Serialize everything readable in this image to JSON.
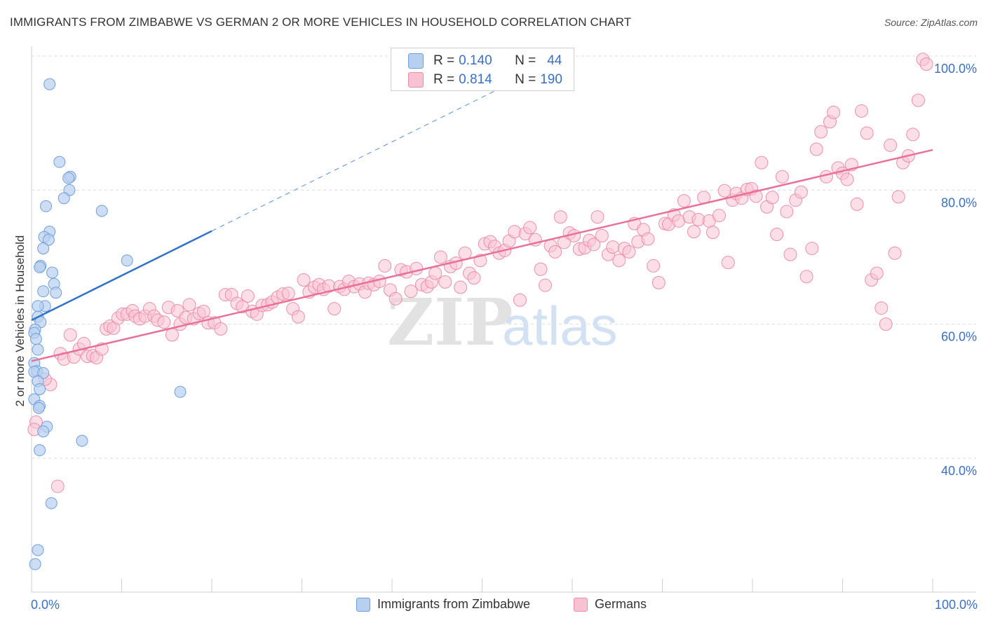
{
  "title": "IMMIGRANTS FROM ZIMBABWE VS GERMAN 2 OR MORE VEHICLES IN HOUSEHOLD CORRELATION CHART",
  "source": "Source: ZipAtlas.com",
  "watermark": {
    "zip": "ZIP",
    "atlas": "atlas"
  },
  "colors": {
    "blue_fill": "#b8d0f0",
    "blue_stroke": "#6f9fdc",
    "blue_line": "#2f72c9",
    "pink_fill": "#f9c2d3",
    "pink_stroke": "#ea8fab",
    "pink_line": "#e8709a",
    "axis_label": "#3a6fc4",
    "grid": "#dcdcdc"
  },
  "legend": {
    "rows": [
      {
        "r_key": "R =",
        "r_value": "0.140",
        "n_key": "N =",
        "n_value": "44"
      },
      {
        "r_key": "R =",
        "r_value": "0.814",
        "n_key": "N =",
        "n_value": "190"
      }
    ]
  },
  "bottom_legend": {
    "blue": "Immigrants from Zimbabwe",
    "pink": "Germans"
  },
  "chart_data": {
    "type": "scatter",
    "title": "IMMIGRANTS FROM ZIMBABWE VS GERMAN 2 OR MORE VEHICLES IN HOUSEHOLD CORRELATION CHART",
    "xlabel": "",
    "ylabel": "2 or more Vehicles in Household",
    "xlim": [
      0,
      100
    ],
    "ylim": [
      20,
      101
    ],
    "x_tick_labels": [
      "0.0%",
      "100.0%"
    ],
    "y_ticks": [
      100,
      80,
      60,
      40
    ],
    "y_tick_labels": [
      "100.0%",
      "80.0%",
      "60.0%",
      "40.0%"
    ],
    "grid": true,
    "legend_position": "top-center",
    "series": [
      {
        "name": "Immigrants from Zimbabwe",
        "color": "#6f9fdc",
        "r": 0.14,
        "n": 44,
        "trend": {
          "x": [
            0,
            20
          ],
          "y": [
            60.6,
            73.9
          ],
          "extended_to": [
            60,
            100
          ]
        },
        "points": [
          [
            2,
            95.8
          ],
          [
            3.1,
            84.2
          ],
          [
            4.3,
            82
          ],
          [
            4.1,
            81.8
          ],
          [
            4.2,
            80
          ],
          [
            3.6,
            78.8
          ],
          [
            1.6,
            77.6
          ],
          [
            7.8,
            76.9
          ],
          [
            2,
            73.8
          ],
          [
            1.4,
            73
          ],
          [
            1.9,
            72.6
          ],
          [
            1.3,
            71.3
          ],
          [
            10.6,
            69.5
          ],
          [
            1,
            68.7
          ],
          [
            0.9,
            68.5
          ],
          [
            2.3,
            67.7
          ],
          [
            2.5,
            66
          ],
          [
            1.3,
            64.9
          ],
          [
            2.7,
            64.7
          ],
          [
            1.5,
            62.7
          ],
          [
            0.7,
            62.7
          ],
          [
            0.7,
            61.1
          ],
          [
            1,
            60.3
          ],
          [
            0.4,
            59.2
          ],
          [
            0.3,
            58.7
          ],
          [
            0.5,
            57.8
          ],
          [
            0.7,
            56.2
          ],
          [
            0.3,
            54.2
          ],
          [
            0.6,
            53
          ],
          [
            0.3,
            52.9
          ],
          [
            1.3,
            52.7
          ],
          [
            0.7,
            51.5
          ],
          [
            0.9,
            50.3
          ],
          [
            16.5,
            49.9
          ],
          [
            0.3,
            48.8
          ],
          [
            0.9,
            47.8
          ],
          [
            0.8,
            47.5
          ],
          [
            1.7,
            44.7
          ],
          [
            1.3,
            44
          ],
          [
            5.6,
            42.6
          ],
          [
            0.9,
            41.2
          ],
          [
            2.2,
            33.3
          ],
          [
            0.7,
            26.3
          ],
          [
            0.4,
            24.2
          ]
        ]
      },
      {
        "name": "Germans",
        "color": "#ea8fab",
        "r": 0.814,
        "n": 190,
        "trend": {
          "x": [
            0,
            100
          ],
          "y": [
            54.5,
            86.0
          ]
        },
        "points": [
          [
            0.5,
            45.4
          ],
          [
            0.3,
            44.3
          ],
          [
            2.1,
            51.0
          ],
          [
            1.5,
            51.8
          ],
          [
            2.9,
            35.8
          ],
          [
            3.2,
            55.6
          ],
          [
            3.6,
            54.8
          ],
          [
            4.3,
            58.4
          ],
          [
            4.7,
            55.1
          ],
          [
            5.3,
            56.3
          ],
          [
            5.8,
            57.1
          ],
          [
            6.2,
            55.2
          ],
          [
            6.8,
            55.3
          ],
          [
            7.2,
            55.0
          ],
          [
            7.8,
            56.3
          ],
          [
            8.3,
            59.3
          ],
          [
            8.7,
            59.7
          ],
          [
            9.1,
            59.4
          ],
          [
            9.6,
            60.9
          ],
          [
            10.1,
            61.5
          ],
          [
            10.6,
            61.5
          ],
          [
            11.2,
            62.0
          ],
          [
            11.5,
            61.2
          ],
          [
            12.0,
            60.8
          ],
          [
            12.6,
            61.2
          ],
          [
            13.1,
            62.3
          ],
          [
            13.6,
            61.2
          ],
          [
            14.0,
            60.6
          ],
          [
            14.7,
            60.3
          ],
          [
            15.2,
            62.5
          ],
          [
            15.6,
            58.4
          ],
          [
            16.2,
            62.0
          ],
          [
            16.5,
            60.0
          ],
          [
            17.1,
            61.0
          ],
          [
            17.5,
            62.9
          ],
          [
            18.0,
            60.8
          ],
          [
            18.6,
            61.6
          ],
          [
            19.1,
            61.9
          ],
          [
            19.6,
            60.2
          ],
          [
            20.3,
            60.2
          ],
          [
            21.0,
            59.3
          ],
          [
            21.5,
            64.4
          ],
          [
            22.2,
            64.4
          ],
          [
            22.8,
            63.1
          ],
          [
            23.4,
            62.6
          ],
          [
            24.0,
            64.2
          ],
          [
            24.5,
            61.9
          ],
          [
            25.0,
            61.5
          ],
          [
            25.6,
            62.8
          ],
          [
            26.2,
            62.9
          ],
          [
            26.7,
            63.3
          ],
          [
            27.3,
            64.0
          ],
          [
            27.9,
            64.5
          ],
          [
            28.5,
            64.6
          ],
          [
            29.0,
            62.3
          ],
          [
            29.6,
            61.1
          ],
          [
            30.2,
            66.6
          ],
          [
            30.8,
            64.8
          ],
          [
            31.4,
            65.5
          ],
          [
            31.9,
            65.9
          ],
          [
            32.4,
            65.2
          ],
          [
            33.0,
            65.7
          ],
          [
            33.6,
            62.3
          ],
          [
            34.2,
            65.6
          ],
          [
            34.7,
            65.2
          ],
          [
            35.2,
            66.4
          ],
          [
            35.8,
            65.6
          ],
          [
            36.4,
            66.0
          ],
          [
            37.0,
            64.8
          ],
          [
            37.4,
            66.1
          ],
          [
            38.0,
            65.9
          ],
          [
            38.6,
            66.4
          ],
          [
            39.2,
            68.7
          ],
          [
            39.8,
            65.1
          ],
          [
            40.4,
            63.8
          ],
          [
            41.0,
            68.1
          ],
          [
            41.6,
            67.8
          ],
          [
            42.1,
            64.9
          ],
          [
            42.7,
            68.3
          ],
          [
            43.3,
            65.9
          ],
          [
            43.9,
            65.6
          ],
          [
            44.4,
            66.3
          ],
          [
            44.8,
            67.6
          ],
          [
            45.4,
            70.0
          ],
          [
            45.9,
            66.3
          ],
          [
            46.5,
            68.6
          ],
          [
            47.1,
            69.1
          ],
          [
            47.6,
            65.5
          ],
          [
            48.1,
            70.6
          ],
          [
            48.6,
            67.6
          ],
          [
            49.1,
            66.9
          ],
          [
            49.8,
            69.5
          ],
          [
            50.3,
            72.0
          ],
          [
            50.9,
            72.3
          ],
          [
            51.4,
            71.6
          ],
          [
            51.9,
            70.6
          ],
          [
            52.5,
            71.0
          ],
          [
            53.0,
            72.4
          ],
          [
            53.6,
            73.8
          ],
          [
            54.2,
            63.6
          ],
          [
            54.8,
            73.5
          ],
          [
            55.3,
            74.4
          ],
          [
            55.9,
            72.6
          ],
          [
            56.5,
            68.2
          ],
          [
            57.0,
            65.8
          ],
          [
            57.6,
            71.7
          ],
          [
            58.1,
            70.8
          ],
          [
            58.7,
            76.0
          ],
          [
            59.1,
            72.2
          ],
          [
            59.7,
            73.6
          ],
          [
            60.2,
            73.2
          ],
          [
            60.8,
            71.2
          ],
          [
            61.4,
            71.4
          ],
          [
            61.9,
            72.5
          ],
          [
            62.4,
            71.9
          ],
          [
            62.8,
            76.0
          ],
          [
            63.3,
            73.2
          ],
          [
            64.0,
            70.4
          ],
          [
            64.5,
            71.5
          ],
          [
            65.2,
            69.5
          ],
          [
            65.8,
            71.3
          ],
          [
            66.3,
            70.8
          ],
          [
            66.9,
            75.0
          ],
          [
            67.3,
            72.3
          ],
          [
            67.9,
            74.1
          ],
          [
            68.4,
            72.7
          ],
          [
            69.0,
            68.7
          ],
          [
            69.6,
            66.2
          ],
          [
            70.3,
            75.0
          ],
          [
            70.7,
            74.9
          ],
          [
            71.3,
            76.3
          ],
          [
            71.8,
            75.4
          ],
          [
            72.4,
            78.4
          ],
          [
            73.0,
            76.0
          ],
          [
            73.5,
            73.8
          ],
          [
            74.0,
            75.6
          ],
          [
            74.6,
            78.9
          ],
          [
            75.2,
            75.4
          ],
          [
            75.6,
            73.7
          ],
          [
            76.3,
            76.2
          ],
          [
            76.9,
            79.9
          ],
          [
            77.3,
            69.2
          ],
          [
            77.8,
            78.5
          ],
          [
            78.2,
            79.5
          ],
          [
            78.8,
            78.8
          ],
          [
            79.4,
            80.1
          ],
          [
            79.9,
            80.2
          ],
          [
            80.4,
            79.1
          ],
          [
            81.0,
            84.1
          ],
          [
            81.6,
            77.5
          ],
          [
            82.2,
            78.9
          ],
          [
            82.7,
            73.4
          ],
          [
            83.3,
            82.0
          ],
          [
            83.8,
            76.8
          ],
          [
            84.2,
            70.4
          ],
          [
            84.8,
            78.5
          ],
          [
            85.4,
            79.7
          ],
          [
            86.0,
            67.1
          ],
          [
            86.6,
            71.3
          ],
          [
            87.1,
            86.1
          ],
          [
            87.6,
            88.7
          ],
          [
            88.2,
            82.0
          ],
          [
            88.6,
            90.2
          ],
          [
            89.0,
            91.6
          ],
          [
            89.5,
            83.3
          ],
          [
            90.0,
            82.5
          ],
          [
            90.5,
            81.6
          ],
          [
            91.0,
            83.8
          ],
          [
            91.6,
            77.9
          ],
          [
            92.1,
            91.8
          ],
          [
            92.7,
            88.5
          ],
          [
            93.2,
            66.6
          ],
          [
            93.8,
            67.6
          ],
          [
            94.3,
            62.4
          ],
          [
            94.8,
            60.0
          ],
          [
            95.3,
            86.7
          ],
          [
            95.8,
            70.6
          ],
          [
            96.2,
            79.0
          ],
          [
            96.7,
            84.1
          ],
          [
            97.3,
            85.1
          ],
          [
            97.8,
            88.3
          ],
          [
            98.4,
            93.4
          ],
          [
            98.9,
            99.5
          ],
          [
            99.3,
            98.8
          ]
        ]
      }
    ]
  },
  "axes": {
    "ylabel": "2 or more Vehicles in Household",
    "x_left": "0.0%",
    "x_right": "100.0%"
  }
}
